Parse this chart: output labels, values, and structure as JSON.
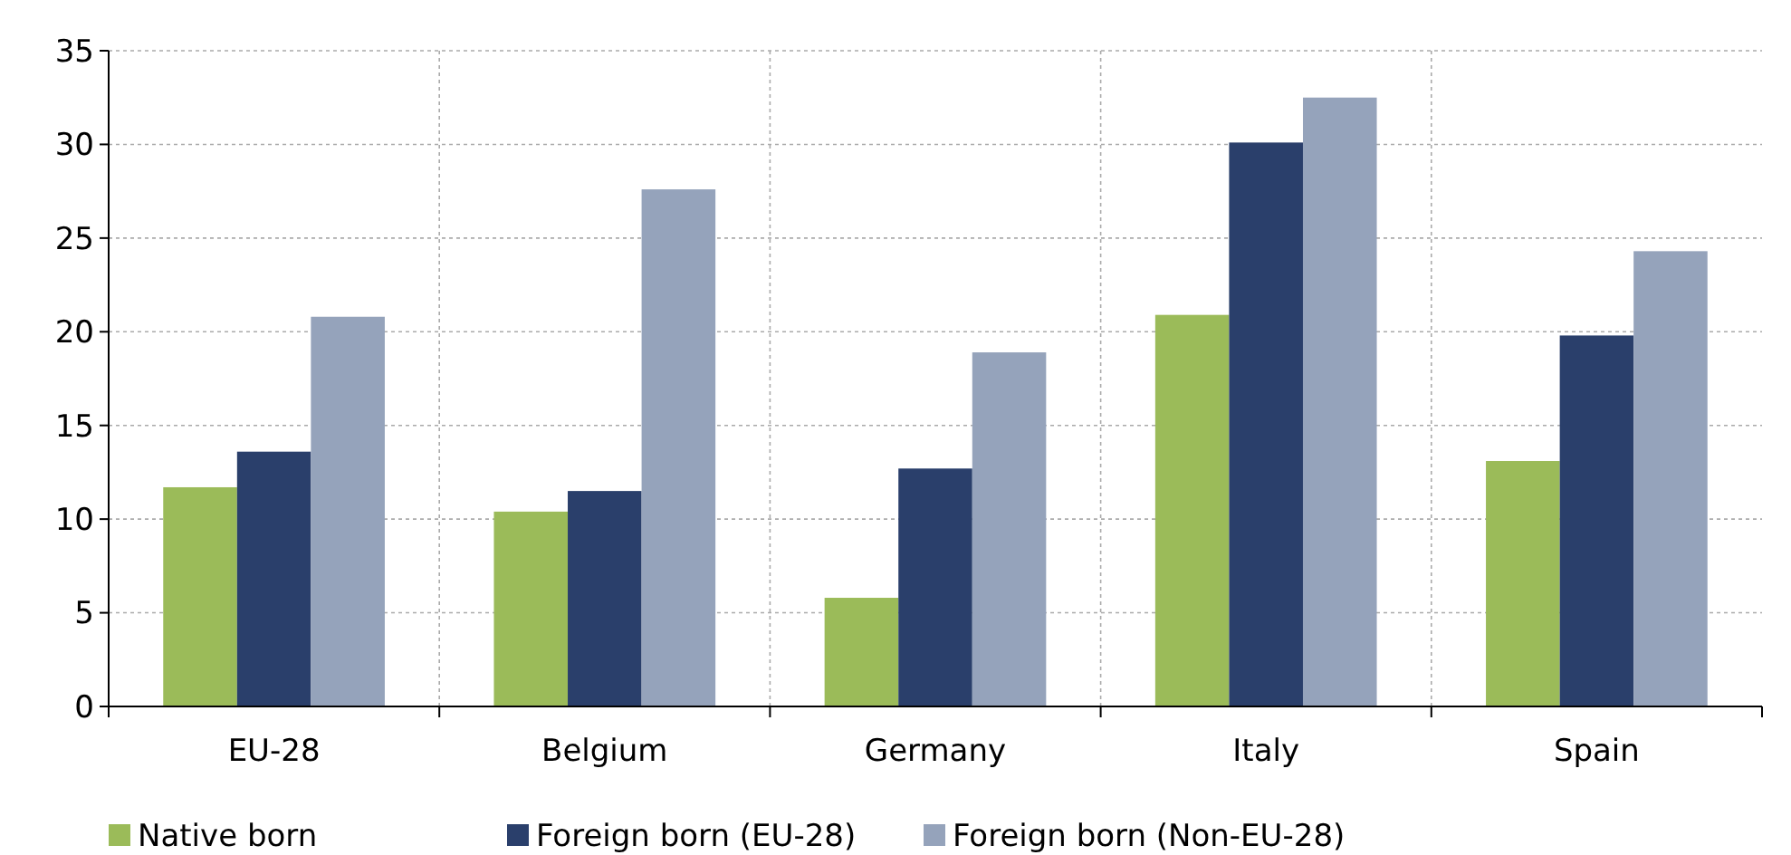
{
  "chart_data": {
    "type": "bar",
    "categories": [
      "EU-28",
      "Belgium",
      "Germany",
      "Italy",
      "Spain"
    ],
    "series": [
      {
        "name": "Native born",
        "color": "#9bbb59",
        "values": [
          11.7,
          10.4,
          5.8,
          20.9,
          13.1
        ]
      },
      {
        "name": "Foreign born (EU-28)",
        "color": "#2a3f6b",
        "values": [
          13.6,
          11.5,
          12.7,
          30.1,
          19.8
        ]
      },
      {
        "name": "Foreign born (Non-EU-28)",
        "color": "#95a3bb",
        "values": [
          20.8,
          27.6,
          18.9,
          32.5,
          24.3
        ]
      }
    ],
    "ylim": [
      0,
      35
    ],
    "yticks": [
      0,
      5,
      10,
      15,
      20,
      25,
      30,
      35
    ],
    "grid": true,
    "legend": "bottom"
  }
}
